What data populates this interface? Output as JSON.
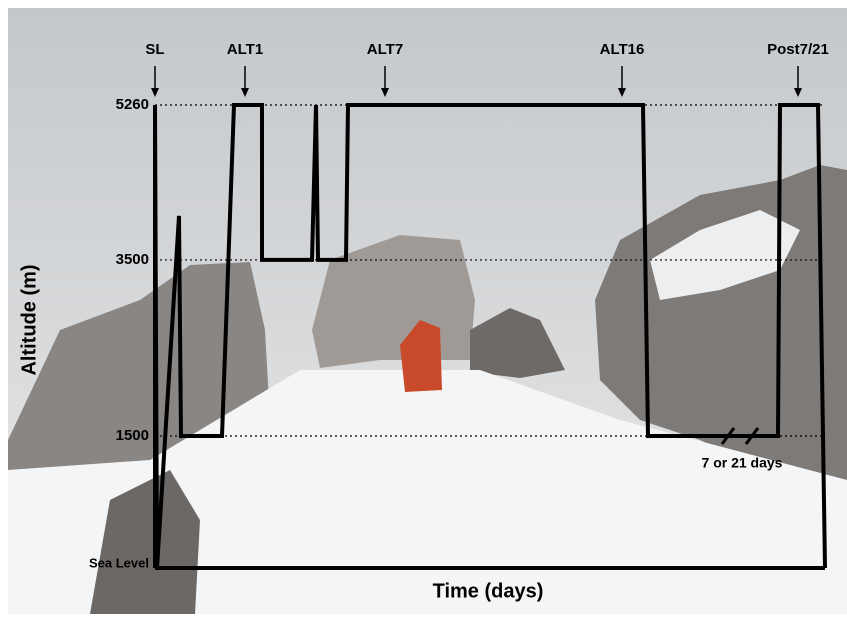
{
  "chart_data": {
    "type": "line",
    "x_label": "Time (days)",
    "y_label": "Altitude (m)",
    "x": [
      0,
      0,
      0.2,
      2.4,
      2.6,
      6.7,
      7.9,
      10.7,
      10.7,
      15.7,
      16.1,
      16.3,
      19.1,
      19.3,
      48.8,
      49.3,
      62.3,
      62.5,
      66.3,
      67
    ],
    "series": [
      {
        "color": "#000000",
        "values": [
          0,
          5260,
          0,
          4000,
          1500,
          1500,
          5260,
          5260,
          3500,
          3500,
          5260,
          3500,
          3500,
          5260,
          5260,
          1500,
          1500,
          5260,
          5260,
          0
        ]
      }
    ],
    "xlim": [
      0,
      67
    ],
    "ylim": [
      0,
      5260
    ],
    "yticks": [
      {
        "value": 0,
        "label": "Sea Level"
      },
      1500,
      3500,
      5260
    ],
    "grid": true,
    "annotations": [
      {
        "text": "SL",
        "x": 0
      },
      {
        "text": "ALT1",
        "x": 9
      },
      {
        "text": "ALT7",
        "x": 23
      },
      {
        "text": "ALT16",
        "x": 46.7
      },
      {
        "text": "Post7/21",
        "x": 64.3
      }
    ],
    "note": {
      "text": "7 or 21 days",
      "x": 58.5
    }
  }
}
